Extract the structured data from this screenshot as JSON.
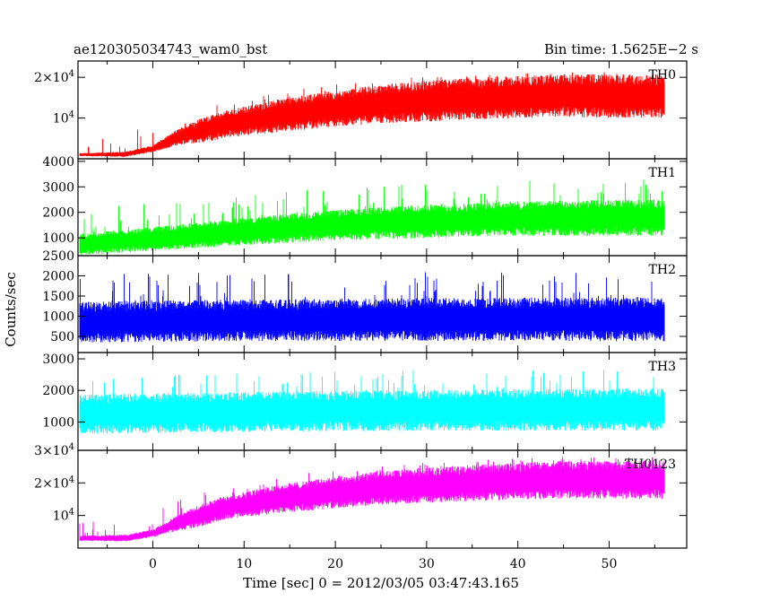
{
  "header": {
    "left": "ae120305034743_wam0_bst",
    "right": "Bin time: 1.5625E−2 s"
  },
  "chart_data": {
    "type": "line",
    "ylabel": "Counts/sec",
    "xlabel": "Time [sec] 0 = 2012/03/05 03:47:43.165",
    "xlim": [
      -8.2,
      58.5
    ],
    "x_ticks": [
      0,
      10,
      20,
      30,
      40,
      50
    ],
    "x_tick_labels": [
      "0",
      "10",
      "20",
      "30",
      "40",
      "50"
    ],
    "data_x_range": [
      -8,
      56
    ],
    "panels": [
      {
        "name": "TH0",
        "color": "#ff0000",
        "ylim": [
          0,
          24000
        ],
        "ticks": [
          {
            "v": 10000,
            "base": "10",
            "exp": "4"
          },
          {
            "v": 20000,
            "base": "2×10",
            "exp": "4"
          }
        ],
        "profile": [
          [
            -8,
            1000
          ],
          [
            -3,
            1100
          ],
          [
            0,
            2500
          ],
          [
            3,
            5500
          ],
          [
            8,
            8500
          ],
          [
            15,
            11000
          ],
          [
            25,
            13500
          ],
          [
            35,
            14800
          ],
          [
            45,
            15500
          ],
          [
            56,
            15300
          ]
        ],
        "spread": [
          [
            -8,
            300
          ],
          [
            0,
            700
          ],
          [
            5,
            2500
          ],
          [
            15,
            3500
          ],
          [
            30,
            4200
          ],
          [
            56,
            4500
          ]
        ],
        "spikes": 6000
      },
      {
        "name": "TH1",
        "color": "#00ff00",
        "ylim": [
          300,
          4100
        ],
        "ticks": [
          {
            "v": 1000,
            "label": "1000"
          },
          {
            "v": 2000,
            "label": "2000"
          },
          {
            "v": 3000,
            "label": "3000"
          },
          {
            "v": 4000,
            "label": "4000"
          }
        ],
        "profile": [
          [
            -8,
            750
          ],
          [
            0,
            950
          ],
          [
            10,
            1250
          ],
          [
            20,
            1500
          ],
          [
            30,
            1650
          ],
          [
            40,
            1750
          ],
          [
            56,
            1800
          ]
        ],
        "spread": [
          [
            -8,
            350
          ],
          [
            10,
            450
          ],
          [
            30,
            550
          ],
          [
            56,
            600
          ]
        ],
        "spikes": 1500
      },
      {
        "name": "TH2",
        "color": "#0000ff",
        "ylim": [
          100,
          2500
        ],
        "ticks": [
          {
            "v": 500,
            "label": "500"
          },
          {
            "v": 1000,
            "label": "1000"
          },
          {
            "v": 1500,
            "label": "1500"
          },
          {
            "v": 2000,
            "label": "2000"
          },
          {
            "v": 2500,
            "label": "2500"
          }
        ],
        "profile": [
          [
            -8,
            850
          ],
          [
            10,
            900
          ],
          [
            30,
            920
          ],
          [
            56,
            930
          ]
        ],
        "spread": [
          [
            -8,
            420
          ],
          [
            56,
            460
          ]
        ],
        "spikes": 1200
      },
      {
        "name": "TH3",
        "color": "#00ffff",
        "ylim": [
          100,
          3200
        ],
        "ticks": [
          {
            "v": 1000,
            "label": "1000"
          },
          {
            "v": 2000,
            "label": "2000"
          },
          {
            "v": 3000,
            "label": "3000"
          }
        ],
        "profile": [
          [
            -8,
            1250
          ],
          [
            20,
            1350
          ],
          [
            56,
            1400
          ]
        ],
        "spread": [
          [
            -8,
            520
          ],
          [
            56,
            560
          ]
        ],
        "spikes": 1300
      },
      {
        "name": "TH0123",
        "color": "#ff00ff",
        "ylim": [
          0,
          30000
        ],
        "ticks": [
          {
            "v": 10000,
            "base": "10",
            "exp": "4"
          },
          {
            "v": 20000,
            "base": "2×10",
            "exp": "4"
          },
          {
            "v": 30000,
            "base": "3×10",
            "exp": "4"
          }
        ],
        "profile": [
          [
            -8,
            3000
          ],
          [
            -3,
            3100
          ],
          [
            0,
            4500
          ],
          [
            3,
            8000
          ],
          [
            8,
            12500
          ],
          [
            15,
            15500
          ],
          [
            25,
            18500
          ],
          [
            35,
            20000
          ],
          [
            45,
            21000
          ],
          [
            56,
            21000
          ]
        ],
        "spread": [
          [
            -8,
            700
          ],
          [
            0,
            1000
          ],
          [
            5,
            2800
          ],
          [
            15,
            3800
          ],
          [
            30,
            4500
          ],
          [
            56,
            5000
          ]
        ],
        "spikes": 7000
      }
    ]
  }
}
